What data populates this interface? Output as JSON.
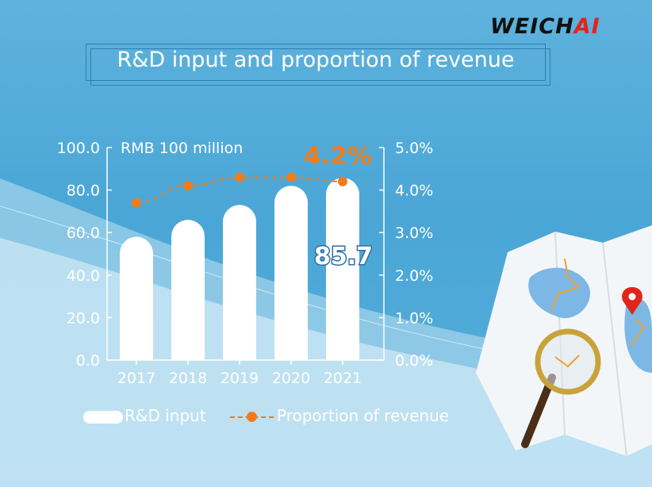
{
  "brand": {
    "logo_main": "WEICH",
    "logo_accent": "AI",
    "accent_color": "#e1251b"
  },
  "title": "R&D input and proportion of revenue",
  "chart_data": {
    "type": "bar",
    "categories": [
      "2017",
      "2018",
      "2019",
      "2020",
      "2021"
    ],
    "series": [
      {
        "name": "R&D input",
        "type": "bar",
        "axis": "left",
        "values": [
          58.0,
          66.0,
          73.0,
          82.0,
          85.7
        ],
        "color": "#ffffff"
      },
      {
        "name": "Proportion of revenue",
        "type": "line",
        "axis": "right",
        "values": [
          3.7,
          4.1,
          4.3,
          4.3,
          4.2
        ],
        "color": "#f07c1c",
        "style": "dashed"
      }
    ],
    "left_axis": {
      "label": "RMB 100 million",
      "ylim": [
        0,
        100
      ],
      "ticks": [
        "0.0",
        "20.0",
        "40.0",
        "60.0",
        "80.0",
        "100.0"
      ]
    },
    "right_axis": {
      "ylim": [
        0,
        5
      ],
      "ticks": [
        "0.0%",
        "1.0%",
        "2.0%",
        "3.0%",
        "4.0%",
        "5.0%"
      ]
    },
    "annotations": {
      "value_label": "85.7",
      "percent_label": "4.2%"
    },
    "legend": {
      "placement": "bottom-left",
      "items": [
        "R&D input",
        "Proportion of revenue"
      ]
    },
    "grid": false
  }
}
